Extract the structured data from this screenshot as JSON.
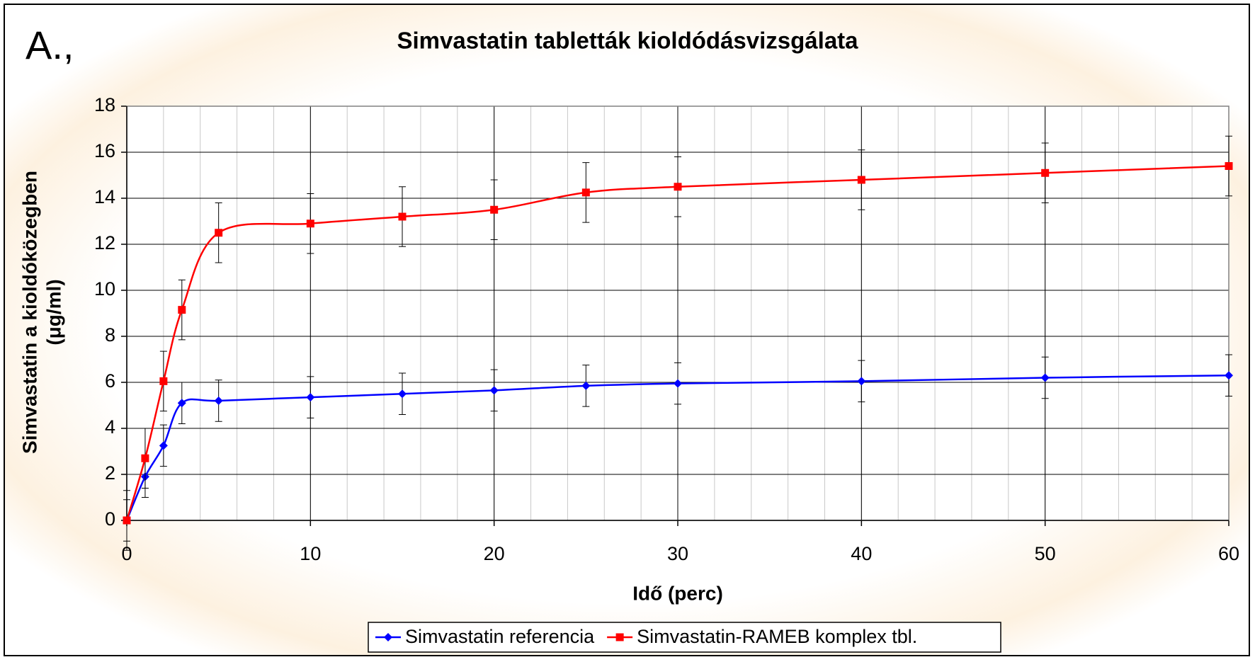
{
  "chart_data": {
    "type": "line",
    "panel_label": "A.,",
    "title": "Simvastatin tabletták kioldódásvizsgálata",
    "xlabel": "Idő (perc)",
    "ylabel": [
      "Simvastatin a kioldóközegben",
      "(μg/ml)"
    ],
    "x": [
      0,
      1,
      2,
      3,
      5,
      10,
      15,
      20,
      25,
      30,
      40,
      50,
      60
    ],
    "series": [
      {
        "name": "Simvastatin referencia",
        "color": "#0000ff",
        "marker": "diamond",
        "values": [
          0,
          1.9,
          3.25,
          5.1,
          5.2,
          5.35,
          5.5,
          5.65,
          5.85,
          5.95,
          6.05,
          6.2,
          6.3
        ],
        "errors": [
          0.9,
          0.9,
          0.9,
          0.9,
          0.9,
          0.9,
          0.9,
          0.9,
          0.9,
          0.9,
          0.9,
          0.9,
          0.9
        ]
      },
      {
        "name": "Simvastatin-RAMEB komplex tbl.",
        "color": "#ff0000",
        "marker": "square",
        "values": [
          0,
          2.7,
          6.05,
          9.15,
          12.5,
          12.9,
          13.2,
          13.5,
          14.25,
          14.5,
          14.8,
          15.1,
          15.4
        ],
        "errors": [
          1.3,
          1.3,
          1.3,
          1.3,
          1.3,
          1.3,
          1.3,
          1.3,
          1.3,
          1.3,
          1.3,
          1.3,
          1.3
        ]
      }
    ],
    "xlim": [
      0,
      60
    ],
    "xticks": [
      0,
      10,
      20,
      30,
      40,
      50,
      60
    ],
    "ylim": [
      0,
      18
    ],
    "yticks": [
      0,
      2,
      4,
      6,
      8,
      10,
      12,
      14,
      16,
      18
    ],
    "x_minor_interval": 2,
    "grid": true,
    "smooth": true,
    "legend": "bottom"
  }
}
